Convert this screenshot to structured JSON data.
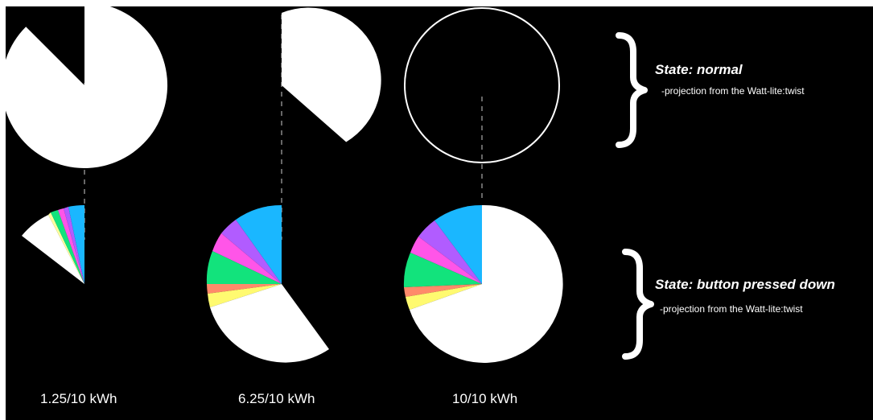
{
  "colors": {
    "background": "#000000",
    "white": "#ffffff",
    "cyan": "#1ab7ff",
    "purple": "#b15cff",
    "magenta": "#ff55e8",
    "green": "#12e37c",
    "salmon": "#ff8a6a",
    "yellow": "#fffa70",
    "pale_yellow": "#ffff9e"
  },
  "states": {
    "normal": {
      "title": "State: normal",
      "subtitle": "-projection from the Watt-lite:twist"
    },
    "pressed": {
      "title": "State: button pressed down",
      "subtitle": "-projection from the Watt-lite:twist"
    }
  },
  "columns": [
    {
      "label": "1.25/10 kWh",
      "fill_fraction": 0.125
    },
    {
      "label": "6.25/10 kWh",
      "fill_fraction": 0.625
    },
    {
      "label": "10/10 kWh",
      "fill_fraction": 1.0
    }
  ]
}
